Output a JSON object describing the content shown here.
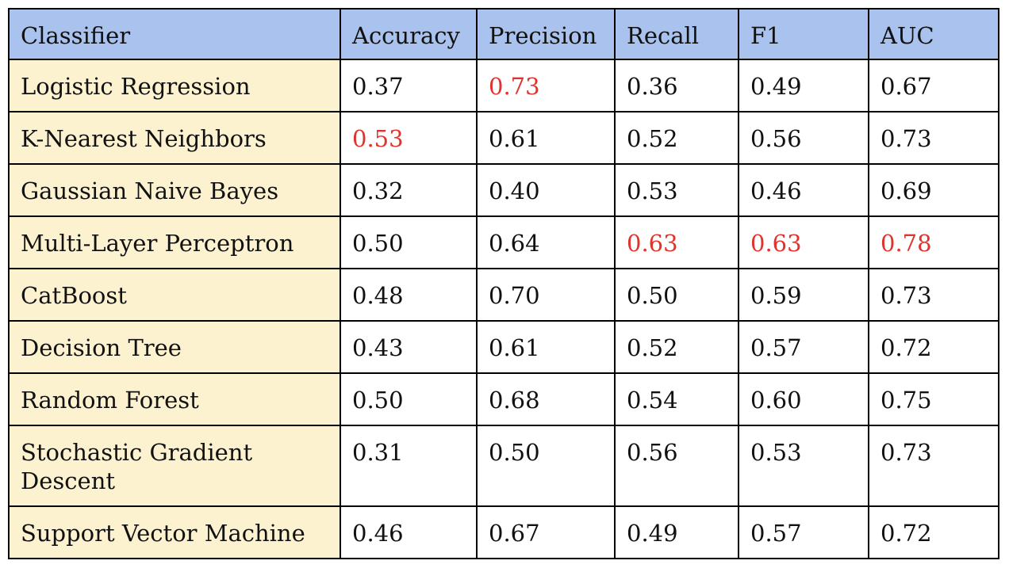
{
  "colors": {
    "header_bg": "#a9c3ee",
    "name_col_bg": "#fdf2d0",
    "highlight_text": "#e0332d",
    "border": "#000000"
  },
  "headers": [
    "Classifier",
    "Accuracy",
    "Precision",
    "Recall",
    "F1",
    "AUC"
  ],
  "rows": [
    {
      "name": "Logistic Regression",
      "values": [
        "0.37",
        "0.73",
        "0.36",
        "0.49",
        "0.67"
      ],
      "highlight": [
        false,
        true,
        false,
        false,
        false
      ]
    },
    {
      "name": "K-Nearest Neighbors",
      "values": [
        "0.53",
        "0.61",
        "0.52",
        "0.56",
        "0.73"
      ],
      "highlight": [
        true,
        false,
        false,
        false,
        false
      ]
    },
    {
      "name": "Gaussian Naive Bayes",
      "values": [
        "0.32",
        "0.40",
        "0.53",
        "0.46",
        "0.69"
      ],
      "highlight": [
        false,
        false,
        false,
        false,
        false
      ]
    },
    {
      "name": "Multi-Layer Perceptron",
      "values": [
        "0.50",
        "0.64",
        "0.63",
        "0.63",
        "0.78"
      ],
      "highlight": [
        false,
        false,
        true,
        true,
        true
      ]
    },
    {
      "name": "CatBoost",
      "values": [
        "0.48",
        "0.70",
        "0.50",
        "0.59",
        "0.73"
      ],
      "highlight": [
        false,
        false,
        false,
        false,
        false
      ]
    },
    {
      "name": "Decision Tree",
      "values": [
        "0.43",
        "0.61",
        "0.52",
        "0.57",
        "0.72"
      ],
      "highlight": [
        false,
        false,
        false,
        false,
        false
      ]
    },
    {
      "name": "Random Forest",
      "values": [
        "0.50",
        "0.68",
        "0.54",
        "0.60",
        "0.75"
      ],
      "highlight": [
        false,
        false,
        false,
        false,
        false
      ]
    },
    {
      "name": "Stochastic Gradient Descent",
      "values": [
        "0.31",
        "0.50",
        "0.56",
        "0.53",
        "0.73"
      ],
      "highlight": [
        false,
        false,
        false,
        false,
        false
      ]
    },
    {
      "name": "Support Vector Machine",
      "values": [
        "0.46",
        "0.67",
        "0.49",
        "0.57",
        "0.72"
      ],
      "highlight": [
        false,
        false,
        false,
        false,
        false
      ]
    }
  ]
}
